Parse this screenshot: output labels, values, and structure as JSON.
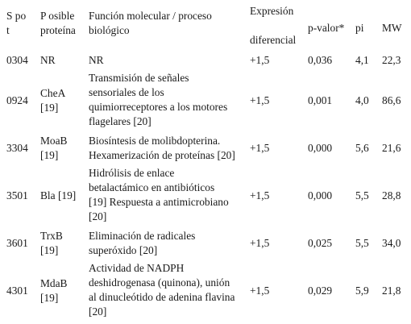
{
  "table": {
    "headers": {
      "spot": "S po\nt",
      "protein": "P osible\nproteína",
      "function": "Función molecular / proceso\nbiológico",
      "expression_top": "Expresión",
      "expression_bottom": "diferencial",
      "pvalue": "p-valor*",
      "pi": "pi",
      "mw": "MW"
    },
    "rows": [
      {
        "spot": "0304",
        "protein": "NR",
        "function": "NR",
        "expression": "+1,5",
        "pvalue": "0,036",
        "pi": "4,1",
        "mw": "22,3"
      },
      {
        "spot": "0924",
        "protein": "CheA\n[19]",
        "function": "Transmisión de señales\nsensoriales de los\nquimiorreceptores a los motores\nflagelares [20]",
        "expression": "+1,5",
        "pvalue": "0,001",
        "pi": "4,0",
        "mw": "86,6"
      },
      {
        "spot": "3304",
        "protein": "MoaB\n[19]",
        "function": "Biosíntesis de molibdopterina.\nHexamerización de proteínas [20]",
        "expression": "+1,5",
        "pvalue": "0,000",
        "pi": "5,6",
        "mw": "21,6"
      },
      {
        "spot": "3501",
        "protein": "Bla [19]",
        "function": "Hidrólisis de enlace\nbetalactámico en antibióticos\n[19] Respuesta a antimicrobiano\n[20]",
        "expression": "+1,5",
        "pvalue": "0,000",
        "pi": "5,5",
        "mw": "28,8"
      },
      {
        "spot": "3601",
        "protein": "TrxB\n[19]",
        "function": "Eliminación de radicales\nsuperóxido [20]",
        "expression": "+1,5",
        "pvalue": "0,025",
        "pi": "5,5",
        "mw": "34,0"
      },
      {
        "spot": "4301",
        "protein": "MdaB\n[19]",
        "function": "Actividad de NADPH\ndeshidrogenasa (quinona), unión\nal dinucleótido de adenina flavina\n[20]",
        "expression": "+1,5",
        "pvalue": "0,029",
        "pi": "5,9",
        "mw": "21,8"
      }
    ]
  }
}
